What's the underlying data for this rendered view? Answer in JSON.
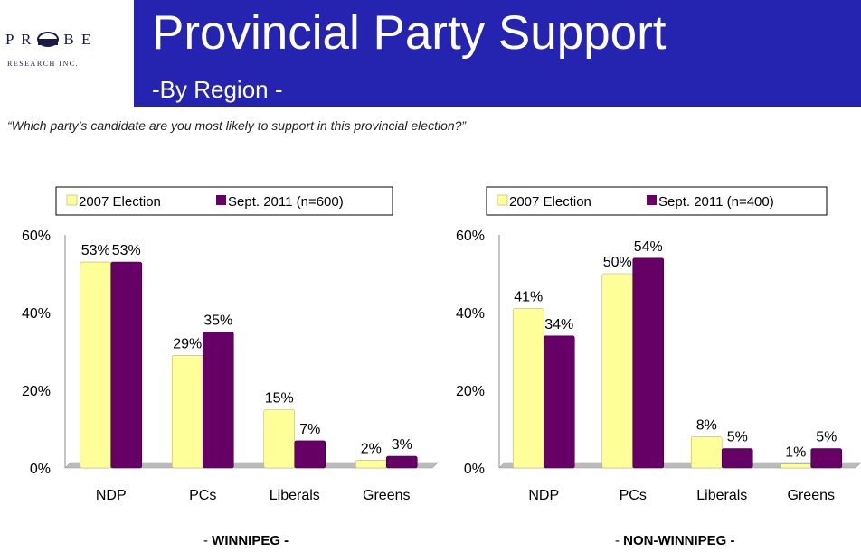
{
  "logo": {
    "line1_left": "P R",
    "line1_right": "B E",
    "line2": "RESEARCH INC."
  },
  "header": {
    "title": "Provincial Party Support",
    "subtitle": "-By Region -"
  },
  "question": "“Which party’s candidate are you most likely to support in this provincial election?”",
  "colors": {
    "header": "#2424b0",
    "election2007": "#ffff99",
    "sept2011": "#660066"
  },
  "chart_data": [
    {
      "type": "bar",
      "region_label": "WINNIPEG -",
      "region_prefix": "- ",
      "categories": [
        "NDP",
        "PCs",
        "Liberals",
        "Greens"
      ],
      "series": [
        {
          "name": "2007 Election",
          "values": [
            53,
            29,
            15,
            2
          ],
          "labels": [
            "53%",
            "29%",
            "15%",
            "2%"
          ]
        },
        {
          "name": "Sept. 2011 (n=600)",
          "values": [
            53,
            35,
            7,
            3
          ],
          "labels": [
            "53%",
            "35%",
            "7%",
            "3%"
          ]
        }
      ],
      "y_ticks": [
        "0%",
        "20%",
        "40%",
        "60%"
      ],
      "ylim": [
        0,
        60
      ],
      "legend_position": "top"
    },
    {
      "type": "bar",
      "region_label": "NON-WINNIPEG -",
      "region_prefix": "- ",
      "categories": [
        "NDP",
        "PCs",
        "Liberals",
        "Greens"
      ],
      "series": [
        {
          "name": "2007 Election",
          "values": [
            41,
            50,
            8,
            1
          ],
          "labels": [
            "41%",
            "50%",
            "8%",
            "1%"
          ]
        },
        {
          "name": "Sept. 2011 (n=400)",
          "values": [
            34,
            54,
            5,
            5
          ],
          "labels": [
            "34%",
            "54%",
            "5%",
            "5%"
          ]
        }
      ],
      "y_ticks": [
        "0%",
        "20%",
        "40%",
        "60%"
      ],
      "ylim": [
        0,
        60
      ],
      "legend_position": "top"
    }
  ]
}
